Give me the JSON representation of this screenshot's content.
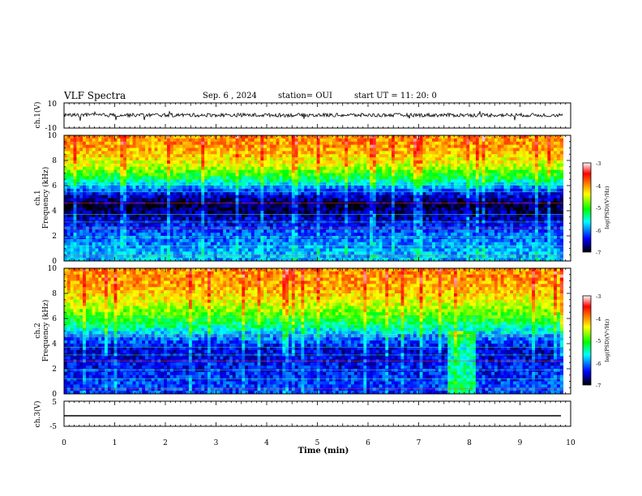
{
  "header": {
    "title": "VLF Spectra",
    "date": "Sep. 6 , 2024",
    "station": "station= OUI",
    "start": "start UT = 11: 20: 0"
  },
  "colorbar": {
    "label": "log(PSD)(V²/Hz)",
    "ticks": [
      "-3",
      "-4",
      "-5",
      "-6",
      "-7"
    ],
    "colors": [
      "#ffffff",
      "#ff0000",
      "#ffff00",
      "#00ff00",
      "#00ffff",
      "#0000ff",
      "#000000"
    ]
  },
  "chart_data": [
    {
      "type": "line",
      "panel": "ch.1 waveform",
      "ylabel": "ch.1(V)",
      "ylim": [
        -10,
        10
      ],
      "ytick_labels": [
        "10",
        "-10"
      ],
      "x_unit": "min",
      "description_values": {
        "baseline": 0,
        "noise_amplitude_approx": 1.5
      }
    },
    {
      "type": "heatmap",
      "panel": "ch.1 spectrogram",
      "ylabel": "ch.1\nFrequency (kHz)",
      "ylim": [
        0,
        10
      ],
      "ytick_labels": [
        "0",
        "2",
        "4",
        "6",
        "8",
        "10"
      ],
      "clim": [
        -7,
        -3
      ],
      "approx_profile_logpsd": [
        {
          "freq_khz": 0.5,
          "value": -5.8
        },
        {
          "freq_khz": 1.5,
          "value": -6.0
        },
        {
          "freq_khz": 2.5,
          "value": -6.2
        },
        {
          "freq_khz": 3.5,
          "value": -6.6
        },
        {
          "freq_khz": 4.5,
          "value": -6.9
        },
        {
          "freq_khz": 5.5,
          "value": -6.3
        },
        {
          "freq_khz": 6.5,
          "value": -5.3
        },
        {
          "freq_khz": 7.5,
          "value": -4.6
        },
        {
          "freq_khz": 8.5,
          "value": -4.2
        },
        {
          "freq_khz": 9.5,
          "value": -4.0
        }
      ]
    },
    {
      "type": "heatmap",
      "panel": "ch.2 spectrogram",
      "ylabel": "ch.2\nFrequency (kHz)",
      "ylim": [
        0,
        10
      ],
      "ytick_labels": [
        "0",
        "2",
        "4",
        "6",
        "8",
        "10"
      ],
      "clim": [
        -7,
        -3
      ],
      "approx_profile_logpsd": [
        {
          "freq_khz": 0.5,
          "value": -6.2
        },
        {
          "freq_khz": 1.5,
          "value": -6.3
        },
        {
          "freq_khz": 2.5,
          "value": -6.4
        },
        {
          "freq_khz": 3.5,
          "value": -6.5
        },
        {
          "freq_khz": 4.5,
          "value": -6.0
        },
        {
          "freq_khz": 5.5,
          "value": -5.3
        },
        {
          "freq_khz": 6.5,
          "value": -4.8
        },
        {
          "freq_khz": 7.5,
          "value": -4.4
        },
        {
          "freq_khz": 8.5,
          "value": -4.1
        },
        {
          "freq_khz": 9.5,
          "value": -4.0
        }
      ],
      "bright_segment_minutes": [
        7.55,
        8.15
      ]
    },
    {
      "type": "line",
      "panel": "ch.3 waveform",
      "ylabel": "ch.3(V)",
      "ylim": [
        -5,
        5
      ],
      "ytick_labels": [
        "5",
        "-5"
      ],
      "values_constant": -2.5
    }
  ],
  "xaxis": {
    "label": "Time (min)",
    "range": [
      0,
      10
    ],
    "tick_labels": [
      "0",
      "1",
      "2",
      "3",
      "4",
      "5",
      "6",
      "7",
      "8",
      "9",
      "10"
    ],
    "data_end_minutes": 9.85
  }
}
